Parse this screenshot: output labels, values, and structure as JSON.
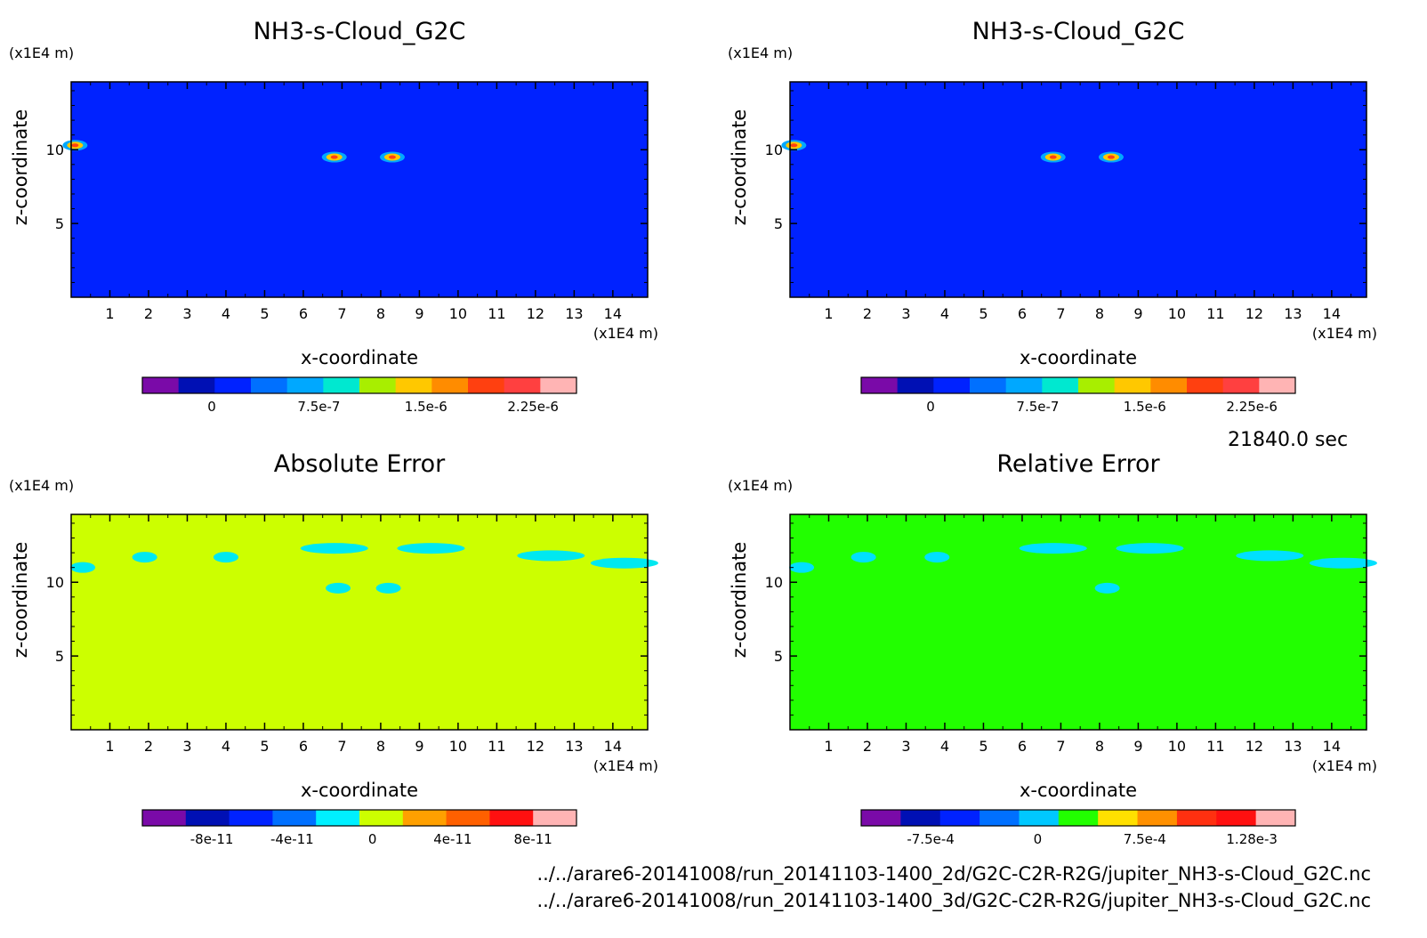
{
  "time_label": "21840.0 sec",
  "files": [
    "../../arare6-20141008/run_20141103-1400_2d/G2C-C2R-R2G/jupiter_NH3-s-Cloud_G2C.nc",
    "../../arare6-20141008/run_20141103-1400_3d/G2C-C2R-R2G/jupiter_NH3-s-Cloud_G2C.nc"
  ],
  "chart_data": [
    {
      "type": "heatmap",
      "title": "NH3-s-Cloud_G2C",
      "xlabel": "x-coordinate",
      "ylabel": "z-coordinate",
      "xunit": "(x1E4 m)",
      "yunit": "(x1E4 m)",
      "xlim": [
        0,
        14.9
      ],
      "ylim": [
        0,
        14.6
      ],
      "xticks": [
        "1",
        "2",
        "3",
        "4",
        "5",
        "6",
        "7",
        "8",
        "9",
        "10",
        "11",
        "12",
        "13",
        "14"
      ],
      "yticks": [
        "5",
        "10"
      ],
      "background_color": "#0022ff",
      "features": [
        {
          "x": 6.8,
          "z": 9.5,
          "kind": "hotspot"
        },
        {
          "x": 8.3,
          "z": 9.5,
          "kind": "hotspot"
        },
        {
          "x": 0.1,
          "z": 10.3,
          "kind": "hotspot"
        }
      ],
      "colorbar": {
        "colors": [
          "#7a0aa8",
          "#0010b4",
          "#0022ff",
          "#0070ff",
          "#00a8ff",
          "#00e8d0",
          "#a8ee00",
          "#ffc800",
          "#ff8c00",
          "#ff4010",
          "#ff4040",
          "#ffb4b4"
        ],
        "labels": [
          "0",
          "7.5e-7",
          "1.5e-6",
          "2.25e-6"
        ]
      }
    },
    {
      "type": "heatmap",
      "title": "NH3-s-Cloud_G2C",
      "xlabel": "x-coordinate",
      "ylabel": "z-coordinate",
      "xunit": "(x1E4 m)",
      "yunit": "(x1E4 m)",
      "xlim": [
        0,
        14.9
      ],
      "ylim": [
        0,
        14.6
      ],
      "xticks": [
        "1",
        "2",
        "3",
        "4",
        "5",
        "6",
        "7",
        "8",
        "9",
        "10",
        "11",
        "12",
        "13",
        "14"
      ],
      "yticks": [
        "5",
        "10"
      ],
      "background_color": "#0022ff",
      "features": [
        {
          "x": 6.8,
          "z": 9.5,
          "kind": "hotspot"
        },
        {
          "x": 8.3,
          "z": 9.5,
          "kind": "hotspot"
        },
        {
          "x": 0.1,
          "z": 10.3,
          "kind": "hotspot"
        }
      ],
      "colorbar": {
        "colors": [
          "#7a0aa8",
          "#0010b4",
          "#0022ff",
          "#0070ff",
          "#00a8ff",
          "#00e8d0",
          "#a8ee00",
          "#ffc800",
          "#ff8c00",
          "#ff4010",
          "#ff4040",
          "#ffb4b4"
        ],
        "labels": [
          "0",
          "7.5e-7",
          "1.5e-6",
          "2.25e-6"
        ]
      }
    },
    {
      "type": "heatmap",
      "title": "Absolute Error",
      "xlabel": "x-coordinate",
      "ylabel": "z-coordinate",
      "xunit": "(x1E4 m)",
      "yunit": "(x1E4 m)",
      "xlim": [
        0,
        14.9
      ],
      "ylim": [
        0,
        14.6
      ],
      "xticks": [
        "1",
        "2",
        "3",
        "4",
        "5",
        "6",
        "7",
        "8",
        "9",
        "10",
        "11",
        "12",
        "13",
        "14"
      ],
      "yticks": [
        "5",
        "10"
      ],
      "background_color": "#ccff00",
      "patch_color": "#00e8f0",
      "features": [
        {
          "x": 0.3,
          "z": 11.0,
          "kind": "patch"
        },
        {
          "x": 1.9,
          "z": 11.7,
          "kind": "patch"
        },
        {
          "x": 4.0,
          "z": 11.7,
          "kind": "patch"
        },
        {
          "x": 6.8,
          "z": 12.3,
          "kind": "patch"
        },
        {
          "x": 9.3,
          "z": 12.3,
          "kind": "patch"
        },
        {
          "x": 12.4,
          "z": 11.8,
          "kind": "patch"
        },
        {
          "x": 14.3,
          "z": 11.3,
          "kind": "patch"
        },
        {
          "x": 6.9,
          "z": 9.6,
          "kind": "patch"
        },
        {
          "x": 8.2,
          "z": 9.6,
          "kind": "patch"
        }
      ],
      "colorbar": {
        "colors": [
          "#7a0aa8",
          "#0010b4",
          "#0022ff",
          "#0070ff",
          "#00f0ff",
          "#ccff00",
          "#ffa000",
          "#ff6000",
          "#ff1010",
          "#ffb4b4"
        ],
        "labels": [
          "-8e-11",
          "-4e-11",
          "0",
          "4e-11",
          "8e-11"
        ]
      }
    },
    {
      "type": "heatmap",
      "title": "Relative Error",
      "xlabel": "x-coordinate",
      "ylabel": "z-coordinate",
      "xunit": "(x1E4 m)",
      "yunit": "(x1E4 m)",
      "xlim": [
        0,
        14.9
      ],
      "ylim": [
        0,
        14.6
      ],
      "xticks": [
        "1",
        "2",
        "3",
        "4",
        "5",
        "6",
        "7",
        "8",
        "9",
        "10",
        "11",
        "12",
        "13",
        "14"
      ],
      "yticks": [
        "5",
        "10"
      ],
      "background_color": "#22ff00",
      "patch_color": "#00e0ff",
      "features": [
        {
          "x": 0.3,
          "z": 11.0,
          "kind": "patch"
        },
        {
          "x": 1.9,
          "z": 11.7,
          "kind": "patch"
        },
        {
          "x": 3.8,
          "z": 11.7,
          "kind": "patch"
        },
        {
          "x": 6.8,
          "z": 12.3,
          "kind": "patch"
        },
        {
          "x": 9.3,
          "z": 12.3,
          "kind": "patch"
        },
        {
          "x": 12.4,
          "z": 11.8,
          "kind": "patch"
        },
        {
          "x": 14.3,
          "z": 11.3,
          "kind": "patch"
        },
        {
          "x": 8.2,
          "z": 9.6,
          "kind": "patch"
        }
      ],
      "colorbar": {
        "colors": [
          "#7a0aa8",
          "#0010b4",
          "#0022ff",
          "#0070ff",
          "#00c8ff",
          "#22ff00",
          "#ffe000",
          "#ff9000",
          "#ff3010",
          "#ff1010",
          "#ffb4b4"
        ],
        "labels": [
          "-7.5e-4",
          "0",
          "7.5e-4",
          "1.28e-3"
        ]
      }
    }
  ]
}
